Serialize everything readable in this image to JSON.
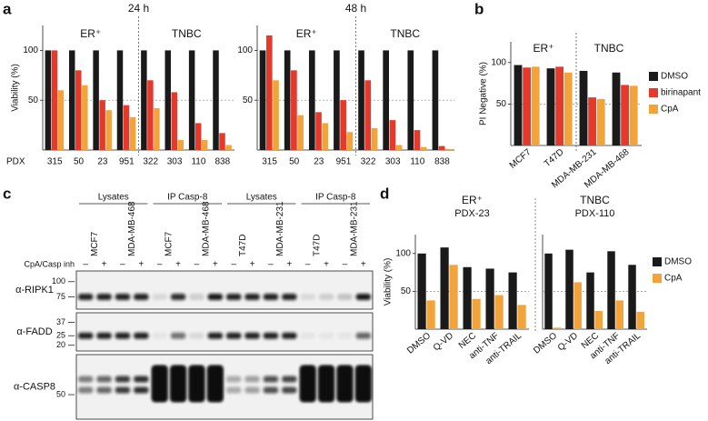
{
  "panel_labels": [
    "a",
    "b",
    "c",
    "d"
  ],
  "chart_data": [
    {
      "type": "bar",
      "title": "24 h",
      "ylabel": "Viability (%)",
      "xlabel": "PDX",
      "group_labels": [
        "ER⁺",
        "TNBC"
      ],
      "categories": [
        "315",
        "50",
        "23",
        "951",
        "322",
        "303",
        "110",
        "838"
      ],
      "series": [
        {
          "color": "#1a1a1a",
          "values": [
            100,
            100,
            100,
            100,
            100,
            100,
            100,
            100
          ]
        },
        {
          "color": "#e4392b",
          "values": [
            100,
            80,
            50,
            45,
            70,
            58,
            27,
            17
          ]
        },
        {
          "color": "#f2a33a",
          "values": [
            60,
            65,
            40,
            33,
            42,
            10,
            10,
            5
          ]
        }
      ],
      "ylim": [
        0,
        125
      ],
      "yticks": [
        50,
        100
      ],
      "hline": 50
    },
    {
      "type": "bar",
      "title": "48 h",
      "group_labels": [
        "ER⁺",
        "TNBC"
      ],
      "categories": [
        "315",
        "50",
        "23",
        "951",
        "322",
        "303",
        "110",
        "838"
      ],
      "series": [
        {
          "color": "#1a1a1a",
          "values": [
            100,
            100,
            100,
            100,
            100,
            100,
            100,
            100
          ]
        },
        {
          "color": "#e4392b",
          "values": [
            115,
            80,
            38,
            50,
            70,
            30,
            20,
            4
          ]
        },
        {
          "color": "#f2a33a",
          "values": [
            70,
            35,
            27,
            18,
            22,
            5,
            3,
            1
          ]
        }
      ],
      "ylim": [
        0,
        125
      ],
      "yticks": [
        50,
        100
      ],
      "hline": 50
    },
    {
      "type": "bar",
      "ylabel": "PI Negative (%)",
      "group_labels": [
        "ER⁺",
        "TNBC"
      ],
      "categories": [
        "MCF7",
        "T47D",
        "MDA-MB-231",
        "MDA-MB-468"
      ],
      "series": [
        {
          "name": "DMSO",
          "color": "#1a1a1a",
          "values": [
            97,
            93,
            90,
            88
          ]
        },
        {
          "name": "birinapant",
          "color": "#e4392b",
          "values": [
            94,
            95,
            58,
            73
          ]
        },
        {
          "name": "CpA",
          "color": "#f2a33a",
          "values": [
            95,
            88,
            56,
            72
          ]
        }
      ],
      "ylim": [
        0,
        125
      ],
      "yticks": [
        50,
        100
      ],
      "hline": 50,
      "legend": "right"
    },
    {
      "type": "bar",
      "title": "ER⁺",
      "subtitle": "PDX-23",
      "ylabel": "Viability (%)",
      "categories": [
        "DMSO",
        "Q-VD",
        "NEC",
        "anti-TNF",
        "anti-TRAIL"
      ],
      "series": [
        {
          "color": "#1a1a1a",
          "values": [
            100,
            108,
            82,
            80,
            75
          ]
        },
        {
          "color": "#f2a33a",
          "values": [
            38,
            85,
            40,
            45,
            32
          ]
        }
      ],
      "ylim": [
        0,
        125
      ],
      "yticks": [
        50,
        100
      ],
      "hline": 50
    },
    {
      "type": "bar",
      "title": "TNBC",
      "subtitle": "PDX-110",
      "categories": [
        "DMSO",
        "Q-VD",
        "NEC",
        "anti-TNF",
        "anti-TRAIL"
      ],
      "series": [
        {
          "name": "DMSO",
          "color": "#1a1a1a",
          "values": [
            100,
            105,
            75,
            103,
            85
          ]
        },
        {
          "name": "CpA",
          "color": "#f2a33a",
          "values": [
            2,
            62,
            24,
            38,
            23
          ]
        }
      ],
      "ylim": [
        0,
        125
      ],
      "hline": 50,
      "legend": "right"
    }
  ],
  "western_blot": {
    "headers": [
      "Lysates",
      "IP Casp-8",
      "Lysates",
      "IP Casp-8"
    ],
    "lanes": [
      "MCF7",
      "MDA-MB-468",
      "MCF7",
      "MDA-MB-468",
      "T47D",
      "MDA-MB-231",
      "T47D",
      "MDA-MB-231"
    ],
    "treatment_label": "CpA/Casp inh",
    "treatment_signs": [
      "–",
      "+",
      "–",
      "+",
      "–",
      "+",
      "–",
      "+",
      "–",
      "+",
      "–",
      "+",
      "–",
      "+",
      "–",
      "+"
    ],
    "rows": [
      {
        "label": "α-RIPK1",
        "markers": [
          100,
          75
        ]
      },
      {
        "label": "α-FADD",
        "markers": [
          37,
          25,
          20
        ]
      },
      {
        "label": "α-CASP8",
        "markers": [
          50
        ]
      }
    ]
  }
}
